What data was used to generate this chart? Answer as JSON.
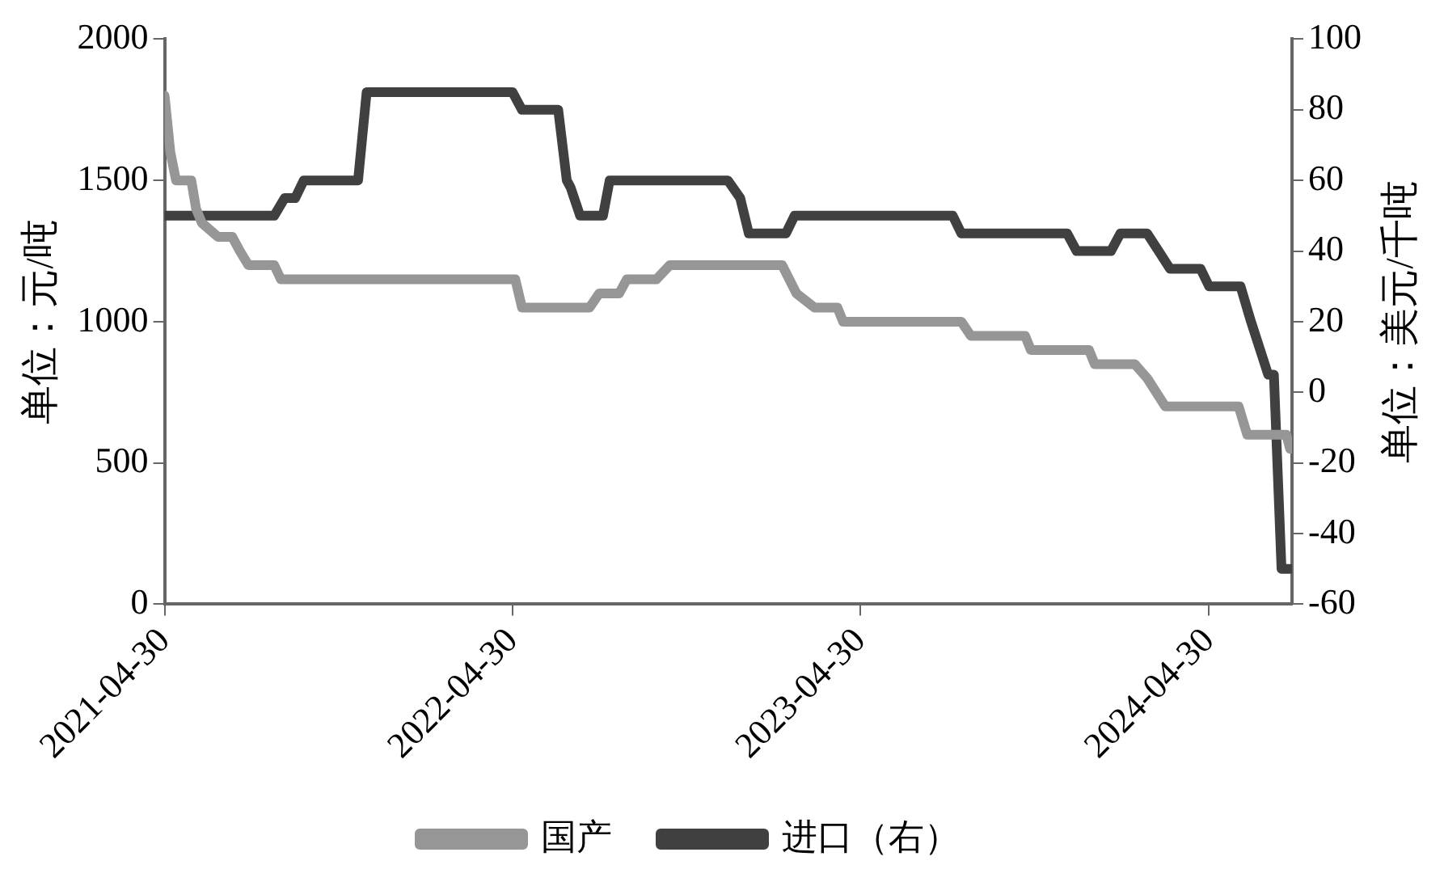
{
  "chart_data": {
    "type": "line",
    "ylabel": "单位：元/吨",
    "y2label": "单位：美元/千吨",
    "xlim": [
      "2021-04-30",
      "2024-07-26"
    ],
    "xticks": [
      "2021-04-30",
      "2022-04-30",
      "2023-04-30",
      "2024-04-30"
    ],
    "ylim": [
      0,
      2000
    ],
    "yticks": [
      0,
      500,
      1000,
      1500,
      2000
    ],
    "y2lim": [
      -60,
      100
    ],
    "y2ticks": [
      -60,
      -40,
      -20,
      0,
      20,
      40,
      60,
      80,
      100
    ],
    "grid": false,
    "legend": "bottom",
    "marker": "none",
    "line_style": "solid",
    "series": [
      {
        "name": "国产",
        "color": "#969696",
        "x": [
          "2021-04-30",
          "2021-05-06",
          "2021-05-12",
          "2021-05-28",
          "2021-06-02",
          "2021-06-08",
          "2021-06-25",
          "2021-07-10",
          "2021-07-18",
          "2021-07-27",
          "2021-08-23",
          "2021-08-30",
          "2022-05-03",
          "2022-05-10",
          "2022-07-20",
          "2022-07-30",
          "2022-08-20",
          "2022-08-28",
          "2022-09-28",
          "2022-10-12",
          "2023-02-07",
          "2023-02-22",
          "2023-03-13",
          "2023-04-06",
          "2023-04-12",
          "2023-08-14",
          "2023-08-24",
          "2023-10-20",
          "2023-10-26",
          "2023-12-26",
          "2024-01-01",
          "2024-02-12",
          "2024-02-25",
          "2024-03-15",
          "2024-05-31",
          "2024-06-09",
          "2024-07-20",
          "2024-07-24"
        ],
        "values": [
          1800,
          1600,
          1500,
          1500,
          1400,
          1350,
          1300,
          1300,
          1250,
          1200,
          1200,
          1150,
          1150,
          1050,
          1050,
          1100,
          1100,
          1150,
          1150,
          1200,
          1200,
          1100,
          1050,
          1050,
          1000,
          1000,
          950,
          950,
          900,
          900,
          850,
          850,
          800,
          700,
          700,
          600,
          600,
          550
        ]
      },
      {
        "name": "进口（右）",
        "color": "#404040",
        "axis": "y2",
        "x": [
          "2021-04-30",
          "2021-08-23",
          "2021-09-03",
          "2021-09-14",
          "2021-09-23",
          "2021-11-19",
          "2021-11-28",
          "2022-04-30",
          "2022-05-10",
          "2022-06-17",
          "2022-06-26",
          "2022-06-30",
          "2022-07-10",
          "2022-08-03",
          "2022-08-10",
          "2022-12-12",
          "2022-12-25",
          "2023-01-03",
          "2023-02-11",
          "2023-02-20",
          "2023-08-05",
          "2023-08-14",
          "2023-12-03",
          "2023-12-13",
          "2024-01-18",
          "2024-01-28",
          "2024-02-25",
          "2024-03-08",
          "2024-03-20",
          "2024-04-21",
          "2024-04-30",
          "2024-06-02",
          "2024-06-13",
          "2024-07-01",
          "2024-07-07",
          "2024-07-15",
          "2024-07-24"
        ],
        "values": [
          50,
          50,
          55,
          55,
          60,
          60,
          85,
          85,
          80,
          80,
          60,
          58,
          50,
          50,
          60,
          60,
          55,
          45,
          45,
          50,
          50,
          45,
          45,
          40,
          40,
          45,
          45,
          40,
          35,
          35,
          30,
          30,
          20,
          5,
          5,
          -50,
          -50
        ]
      }
    ]
  }
}
